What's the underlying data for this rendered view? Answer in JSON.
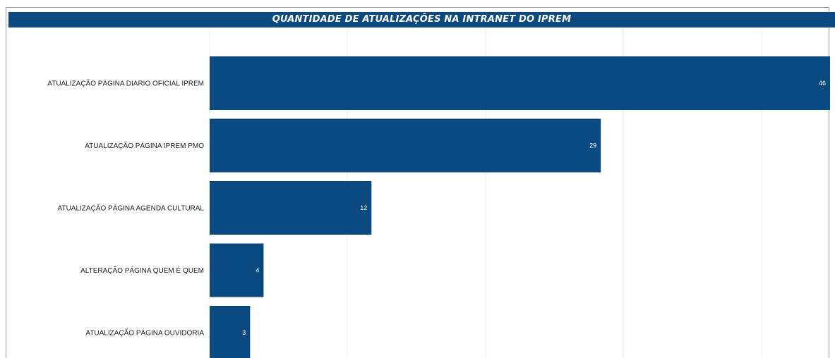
{
  "chart_data": {
    "type": "bar",
    "orientation": "horizontal",
    "title": "QUANTIDADE DE ATUALIZAÇÕES NA INTRANET DO IPREM",
    "categories": [
      "ATUALIZAÇÃO PÁGINA DIARIO OFICIAL IPREM",
      "ATUALIZAÇÃO PÁGINA IPREM PMO",
      "ATUALIZAÇÃO PÁGINA AGENDA CULTURAL",
      "ALTERAÇÃO PÁGINA QUEM É QUEM",
      "ATUALIZAÇÃO PÁGINA OUVIDORIA"
    ],
    "values": [
      46,
      29,
      12,
      4,
      3
    ],
    "data_labels": [
      "46",
      "29",
      "12",
      "4",
      "3"
    ],
    "xlim": [
      0,
      46
    ],
    "grid": true,
    "bar_color": "#0b4a80",
    "title_bar_color": "#0b4a80"
  }
}
